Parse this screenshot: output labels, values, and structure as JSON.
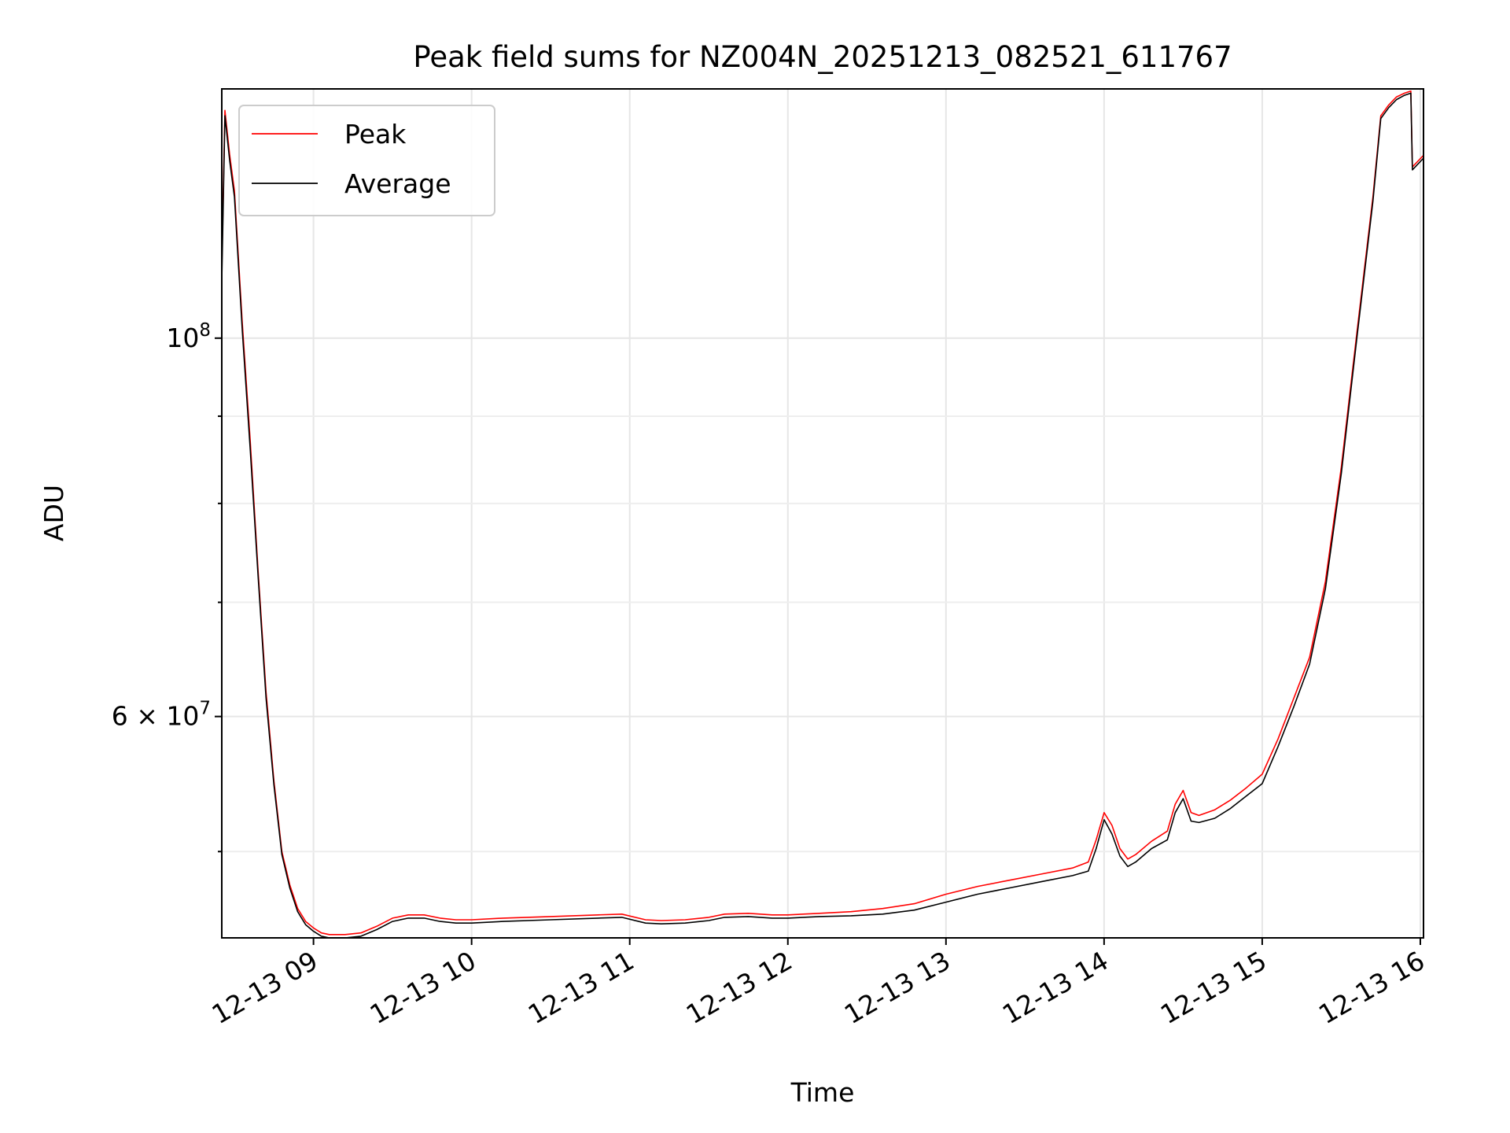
{
  "chart_data": {
    "type": "line",
    "title": "Peak field sums for NZ004N_20251213_082521_611767",
    "xlabel": "Time",
    "ylabel": "ADU",
    "yscale": "log",
    "grid": true,
    "legend_position": "top-left",
    "x_unit": "hours since 12-13 00:00",
    "xlim": [
      8.42,
      16.02
    ],
    "ylim": [
      44500000,
      140000000
    ],
    "x_ticks": [
      {
        "value": 9,
        "label": "12-13 09"
      },
      {
        "value": 10,
        "label": "12-13 10"
      },
      {
        "value": 11,
        "label": "12-13 11"
      },
      {
        "value": 12,
        "label": "12-13 12"
      },
      {
        "value": 13,
        "label": "12-13 13"
      },
      {
        "value": 14,
        "label": "12-13 14"
      },
      {
        "value": 15,
        "label": "12-13 15"
      },
      {
        "value": 16,
        "label": "12-13 16"
      }
    ],
    "y_major_ticks": [
      {
        "value": 100000000,
        "base": "10",
        "exp": "8"
      },
      {
        "value": 60000000,
        "base": "6 × 10",
        "exp": "7"
      }
    ],
    "y_minor_ticks": [
      50000000,
      70000000,
      80000000,
      90000000
    ],
    "series": [
      {
        "name": "Peak",
        "color": "#ff0000",
        "x": [
          8.42,
          8.44,
          8.47,
          8.5,
          8.55,
          8.6,
          8.65,
          8.7,
          8.75,
          8.8,
          8.85,
          8.9,
          8.95,
          9.0,
          9.05,
          9.1,
          9.2,
          9.3,
          9.4,
          9.5,
          9.6,
          9.7,
          9.8,
          9.9,
          10.0,
          10.2,
          10.5,
          10.8,
          10.95,
          11.1,
          11.2,
          11.35,
          11.5,
          11.6,
          11.75,
          11.9,
          12.0,
          12.2,
          12.4,
          12.6,
          12.8,
          13.0,
          13.2,
          13.4,
          13.6,
          13.8,
          13.9,
          13.95,
          14.0,
          14.05,
          14.1,
          14.15,
          14.2,
          14.3,
          14.4,
          14.45,
          14.5,
          14.55,
          14.6,
          14.7,
          14.8,
          14.9,
          15.0,
          15.1,
          15.2,
          15.3,
          15.4,
          15.5,
          15.6,
          15.7,
          15.75,
          15.8,
          15.85,
          15.9,
          15.94,
          15.95,
          16.02
        ],
        "y": [
          110000000,
          136000000,
          128000000,
          122000000,
          102000000,
          87000000,
          73000000,
          62000000,
          55000000,
          50000000,
          47800000,
          46300000,
          45500000,
          45100000,
          44800000,
          44700000,
          44700000,
          44800000,
          45200000,
          45700000,
          45900000,
          45900000,
          45700000,
          45600000,
          45600000,
          45700000,
          45800000,
          45900000,
          45950000,
          45600000,
          45550000,
          45600000,
          45750000,
          45950000,
          46000000,
          45900000,
          45900000,
          46000000,
          46100000,
          46300000,
          46600000,
          47200000,
          47700000,
          48100000,
          48500000,
          48900000,
          49300000,
          50800000,
          52700000,
          51800000,
          50200000,
          49500000,
          49800000,
          50700000,
          51400000,
          53300000,
          54300000,
          52700000,
          52500000,
          52900000,
          53600000,
          54500000,
          55500000,
          58200000,
          61500000,
          65000000,
          72000000,
          84000000,
          101000000,
          121000000,
          135000000,
          137000000,
          138500000,
          139200000,
          139600000,
          126000000,
          128000000
        ]
      },
      {
        "name": "Average",
        "color": "#000000",
        "x": [
          8.42,
          8.44,
          8.47,
          8.5,
          8.55,
          8.6,
          8.65,
          8.7,
          8.75,
          8.8,
          8.85,
          8.9,
          8.95,
          9.0,
          9.05,
          9.1,
          9.2,
          9.3,
          9.4,
          9.5,
          9.6,
          9.7,
          9.8,
          9.9,
          10.0,
          10.2,
          10.5,
          10.8,
          10.95,
          11.1,
          11.2,
          11.35,
          11.5,
          11.6,
          11.75,
          11.9,
          12.0,
          12.2,
          12.4,
          12.6,
          12.8,
          13.0,
          13.2,
          13.4,
          13.6,
          13.8,
          13.9,
          13.95,
          14.0,
          14.05,
          14.1,
          14.15,
          14.2,
          14.3,
          14.4,
          14.45,
          14.5,
          14.55,
          14.6,
          14.7,
          14.8,
          14.9,
          15.0,
          15.1,
          15.2,
          15.3,
          15.4,
          15.5,
          15.6,
          15.7,
          15.75,
          15.8,
          15.85,
          15.9,
          15.94,
          15.95,
          16.02
        ],
        "y": [
          108000000,
          135000000,
          127000000,
          121000000,
          101000000,
          86000000,
          72500000,
          61500000,
          54700000,
          49800000,
          47600000,
          46100000,
          45300000,
          44900000,
          44600000,
          44500000,
          44500000,
          44600000,
          45000000,
          45500000,
          45700000,
          45700000,
          45500000,
          45400000,
          45400000,
          45500000,
          45600000,
          45700000,
          45750000,
          45400000,
          45350000,
          45400000,
          45550000,
          45750000,
          45800000,
          45700000,
          45700000,
          45800000,
          45850000,
          45950000,
          46200000,
          46700000,
          47200000,
          47600000,
          48000000,
          48400000,
          48700000,
          50200000,
          52200000,
          51200000,
          49700000,
          49000000,
          49300000,
          50200000,
          50800000,
          52700000,
          53700000,
          52100000,
          52000000,
          52300000,
          53000000,
          53900000,
          54800000,
          57600000,
          60800000,
          64400000,
          71300000,
          83300000,
          100300000,
          120300000,
          134500000,
          136500000,
          138000000,
          138800000,
          139200000,
          125500000,
          127500000
        ]
      }
    ]
  }
}
